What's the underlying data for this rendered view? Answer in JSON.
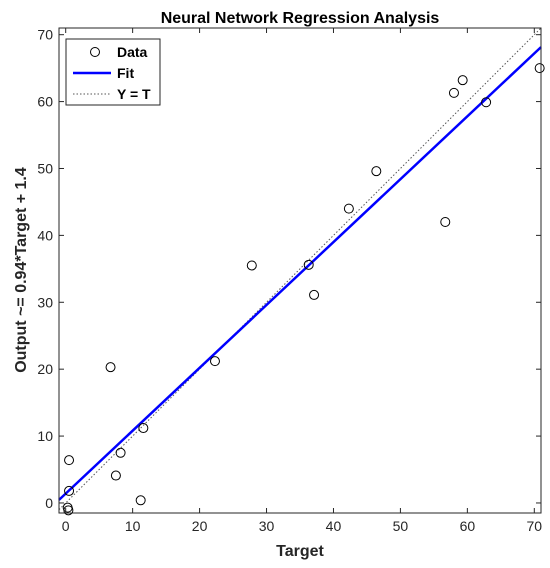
{
  "chart_data": {
    "type": "scatter",
    "title": "Neural Network Regression Analysis",
    "xlabel": "Target",
    "ylabel": "Output ~= 0.94*Target + 1.4",
    "xlim": [
      -1,
      71
    ],
    "ylim": [
      -1.5,
      71
    ],
    "xticks": [
      0,
      10,
      20,
      30,
      40,
      50,
      60,
      70
    ],
    "yticks": [
      0,
      10,
      20,
      30,
      40,
      50,
      60,
      70
    ],
    "grid": false,
    "legend_position": "top-left",
    "series": [
      {
        "name": "Data",
        "kind": "scatter",
        "marker": "open-circle",
        "color": "#000000",
        "points": [
          [
            0.3,
            -0.7
          ],
          [
            0.4,
            -1.1
          ],
          [
            0.5,
            1.8
          ],
          [
            0.5,
            6.4
          ],
          [
            6.7,
            20.3
          ],
          [
            7.5,
            4.1
          ],
          [
            8.2,
            7.5
          ],
          [
            11.2,
            0.4
          ],
          [
            11.6,
            11.2
          ],
          [
            22.3,
            21.2
          ],
          [
            27.8,
            35.5
          ],
          [
            36.3,
            35.6
          ],
          [
            37.1,
            31.1
          ],
          [
            42.3,
            44.0
          ],
          [
            46.4,
            49.6
          ],
          [
            56.7,
            42.0
          ],
          [
            58.0,
            61.3
          ],
          [
            59.3,
            63.2
          ],
          [
            62.8,
            59.9
          ],
          [
            70.8,
            65.0
          ]
        ]
      },
      {
        "name": "Fit",
        "kind": "line",
        "color": "#0000ff",
        "slope": 0.94,
        "intercept": 1.4
      },
      {
        "name": "Y = T",
        "kind": "line",
        "style": "dotted",
        "color": "#555555",
        "slope": 1,
        "intercept": 0
      }
    ]
  }
}
